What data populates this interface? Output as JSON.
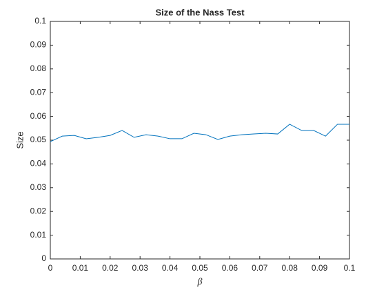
{
  "chart_data": {
    "type": "line",
    "title": "Size of the Nass Test",
    "xlabel": "β",
    "ylabel": "Size",
    "x": [
      0,
      0.004,
      0.008,
      0.012,
      0.016,
      0.02,
      0.024,
      0.028,
      0.032,
      0.036,
      0.04,
      0.044,
      0.048,
      0.052,
      0.056,
      0.06,
      0.064,
      0.068,
      0.072,
      0.076,
      0.08,
      0.084,
      0.088,
      0.092,
      0.096,
      0.1
    ],
    "series": [
      {
        "color": "#0072bd",
        "values": [
          0.0494,
          0.0517,
          0.052,
          0.0506,
          0.0512,
          0.052,
          0.0541,
          0.0512,
          0.0523,
          0.0517,
          0.0506,
          0.0506,
          0.0529,
          0.0523,
          0.0503,
          0.0517,
          0.0523,
          0.0526,
          0.0529,
          0.0526,
          0.0567,
          0.0541,
          0.0541,
          0.0517,
          0.0567,
          0.0567
        ]
      }
    ],
    "xlim": [
      0,
      0.1
    ],
    "ylim": [
      0,
      0.1
    ],
    "xticks": [
      0,
      0.01,
      0.02,
      0.03,
      0.04,
      0.05,
      0.06,
      0.07,
      0.08,
      0.09,
      0.1
    ],
    "yticks": [
      0,
      0.01,
      0.02,
      0.03,
      0.04,
      0.05,
      0.06,
      0.07,
      0.08,
      0.09,
      0.1
    ],
    "grid": false
  }
}
